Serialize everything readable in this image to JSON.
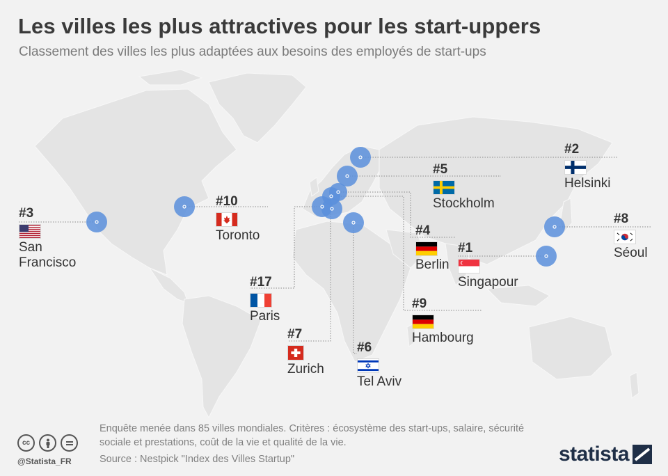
{
  "title": "Les villes les plus attractives pour les start-uppers",
  "subtitle": "Classement des villes les plus adaptées aux besoins des employés de start-ups",
  "cities": [
    {
      "key": "sf",
      "rank": "#3",
      "name": "San Francisco",
      "flag": "usa-flag-icon"
    },
    {
      "key": "toronto",
      "rank": "#10",
      "name": "Toronto",
      "flag": "canada-flag-icon"
    },
    {
      "key": "paris",
      "rank": "#17",
      "name": "Paris",
      "flag": "france-flag-icon"
    },
    {
      "key": "zurich",
      "rank": "#7",
      "name": "Zurich",
      "flag": "switzerland-flag-icon"
    },
    {
      "key": "telaviv",
      "rank": "#6",
      "name": "Tel Aviv",
      "flag": "israel-flag-icon"
    },
    {
      "key": "hamburg",
      "rank": "#9",
      "name": "Hambourg",
      "flag": "germany-flag-icon"
    },
    {
      "key": "berlin",
      "rank": "#4",
      "name": "Berlin",
      "flag": "germany-flag-icon"
    },
    {
      "key": "singapore",
      "rank": "#1",
      "name": "Singapour",
      "flag": "singapore-flag-icon"
    },
    {
      "key": "stockholm",
      "rank": "#5",
      "name": "Stockholm",
      "flag": "sweden-flag-icon"
    },
    {
      "key": "helsinki",
      "rank": "#2",
      "name": "Helsinki",
      "flag": "finland-flag-icon"
    },
    {
      "key": "seoul",
      "rank": "#8",
      "name": "Séoul",
      "flag": "south-korea-flag-icon"
    }
  ],
  "footer": {
    "note": "Enquête menée dans 85 villes mondiales. Critères : écosystème des start-ups, salaire, sécurité sociale et prestations, coût de la vie et qualité de la vie.",
    "source": "Source : Nestpick \"Index des Villes Startup\"",
    "handle": "@Statista_FR",
    "brand": "statista",
    "license_icons": [
      "cc-icon",
      "by-icon",
      "nd-icon"
    ]
  },
  "colors": {
    "marker": "#5b8fdc",
    "map_land": "#e3e3e3",
    "background": "#f2f2f2"
  }
}
